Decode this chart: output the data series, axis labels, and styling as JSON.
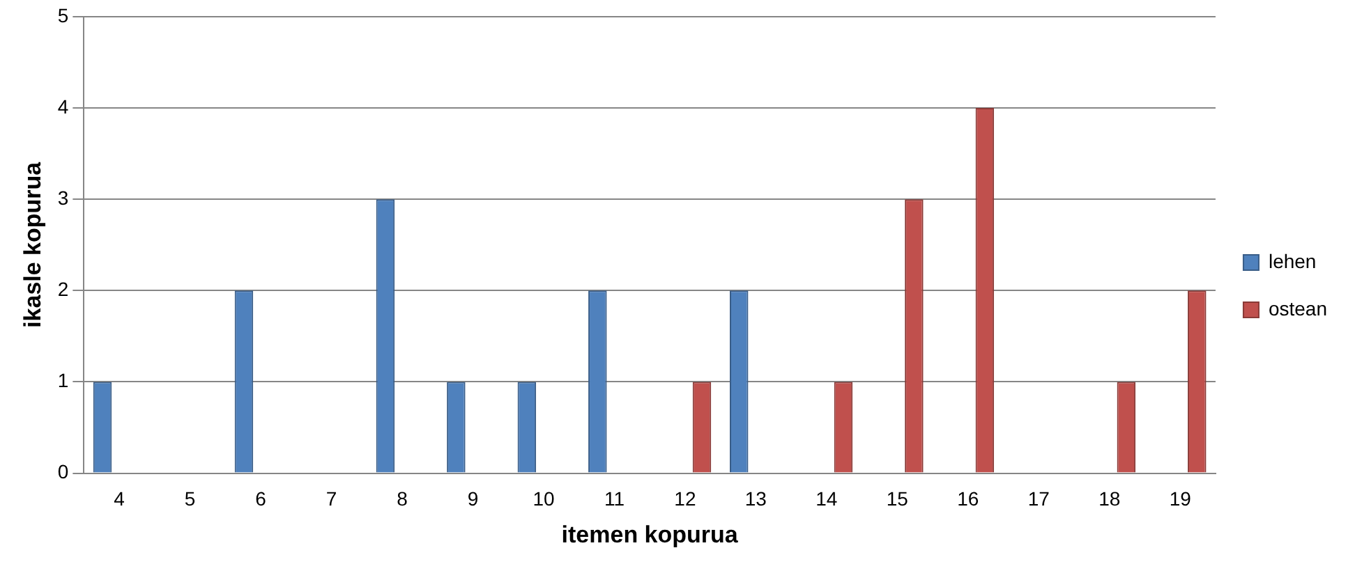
{
  "chart_data": {
    "type": "bar",
    "xlabel": "itemen kopurua",
    "ylabel": "ikasle kopurua",
    "categories": [
      "4",
      "5",
      "6",
      "7",
      "8",
      "9",
      "10",
      "11",
      "12",
      "13",
      "14",
      "15",
      "16",
      "17",
      "18",
      "19"
    ],
    "series": [
      {
        "name": "lehen",
        "color": "#4f81bd",
        "values": [
          1,
          null,
          2,
          null,
          3,
          1,
          1,
          2,
          null,
          2,
          null,
          null,
          null,
          null,
          null,
          null
        ]
      },
      {
        "name": "ostean",
        "color": "#c0504d",
        "values": [
          null,
          null,
          null,
          null,
          null,
          null,
          null,
          null,
          1,
          null,
          1,
          3,
          4,
          null,
          1,
          2
        ]
      }
    ],
    "ylim": [
      0,
      5
    ],
    "yticks": [
      0,
      1,
      2,
      3,
      4,
      5
    ],
    "grid": "y",
    "legend": "right"
  }
}
